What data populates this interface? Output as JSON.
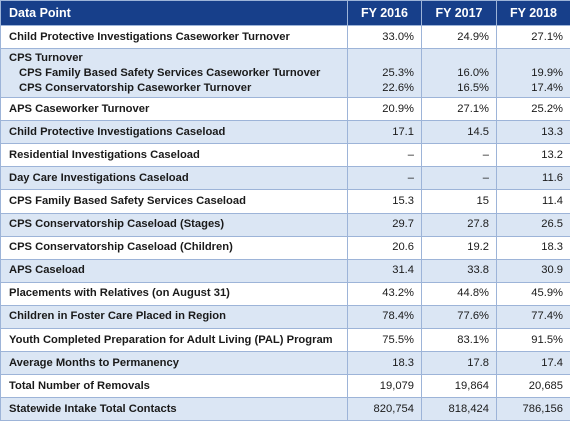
{
  "header": {
    "label": "Data Point",
    "fy2016": "FY 2016",
    "fy2017": "FY 2017",
    "fy2018": "FY 2018"
  },
  "rows": [
    {
      "label": "Child Protective Investigations Caseworker Turnover",
      "v2016": "33.0%",
      "v2017": "24.9%",
      "v2018": "27.1%"
    },
    {
      "label": "CPS Turnover",
      "sub": [
        {
          "label": "CPS Family Based Safety Services Caseworker Turnover",
          "v2016": "25.3%",
          "v2017": "16.0%",
          "v2018": "19.9%"
        },
        {
          "label": "CPS Conservatorship Caseworker Turnover",
          "v2016": "22.6%",
          "v2017": "16.5%",
          "v2018": "17.4%"
        }
      ]
    },
    {
      "label": "APS Caseworker Turnover",
      "v2016": "20.9%",
      "v2017": "27.1%",
      "v2018": "25.2%"
    },
    {
      "label": "Child Protective Investigations Caseload",
      "v2016": "17.1",
      "v2017": "14.5",
      "v2018": "13.3"
    },
    {
      "label": "Residential Investigations Caseload",
      "v2016": "–",
      "v2017": "–",
      "v2018": "13.2"
    },
    {
      "label": "Day Care Investigations Caseload",
      "v2016": "–",
      "v2017": "–",
      "v2018": "11.6"
    },
    {
      "label": "CPS Family Based Safety Services Caseload",
      "v2016": "15.3",
      "v2017": "15",
      "v2018": "11.4"
    },
    {
      "label": "CPS Conservatorship Caseload (Stages)",
      "v2016": "29.7",
      "v2017": "27.8",
      "v2018": "26.5"
    },
    {
      "label": "CPS Conservatorship Caseload (Children)",
      "v2016": "20.6",
      "v2017": "19.2",
      "v2018": "18.3"
    },
    {
      "label": "APS Caseload",
      "v2016": "31.4",
      "v2017": "33.8",
      "v2018": "30.9"
    },
    {
      "label": "Placements with Relatives (on August 31)",
      "v2016": "43.2%",
      "v2017": "44.8%",
      "v2018": "45.9%"
    },
    {
      "label": "Children in Foster Care Placed in Region",
      "v2016": "78.4%",
      "v2017": "77.6%",
      "v2018": "77.4%"
    },
    {
      "label": "Youth Completed Preparation for Adult Living (PAL) Program",
      "v2016": "75.5%",
      "v2017": "83.1%",
      "v2018": "91.5%"
    },
    {
      "label": "Average Months to Permanency",
      "v2016": "18.3",
      "v2017": "17.8",
      "v2018": "17.4"
    },
    {
      "label": "Total Number of Removals",
      "v2016": "19,079",
      "v2017": "19,864",
      "v2018": "20,685"
    },
    {
      "label": "Statewide Intake Total Contacts",
      "v2016": "820,754",
      "v2017": "818,424",
      "v2018": "786,156"
    }
  ],
  "colors": {
    "header_bg": "#173f8a",
    "shade_bg": "#dbe6f4",
    "border": "#9db4d8"
  }
}
